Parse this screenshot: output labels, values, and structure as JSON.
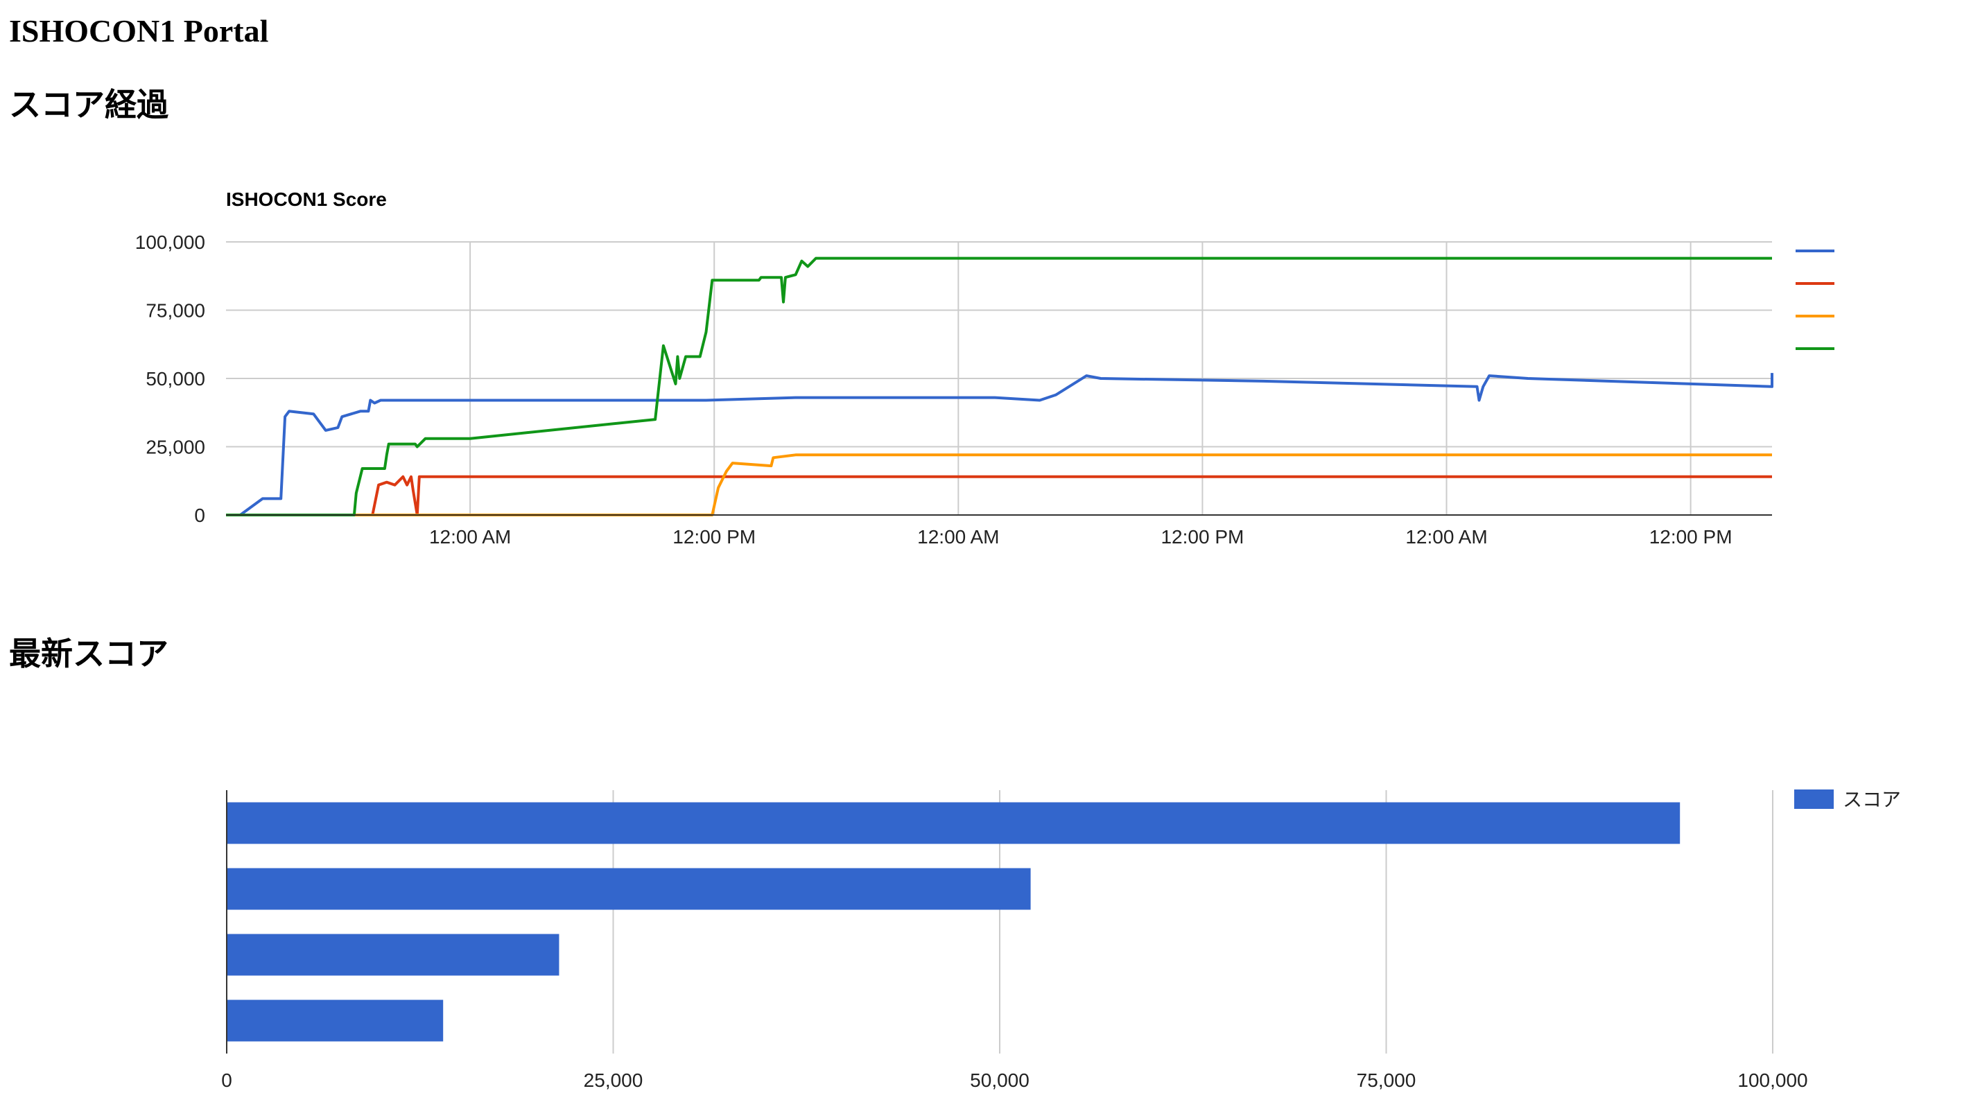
{
  "page": {
    "title": "ISHOCON1 Portal"
  },
  "sections": {
    "history": "スコア経過",
    "latest": "最新スコア"
  },
  "chart_data": [
    {
      "type": "line",
      "title": "ISHOCON1 Score",
      "xlabel": "",
      "ylabel": "",
      "x_ticks": [
        "12:00 AM",
        "12:00 PM",
        "12:00 AM",
        "12:00 PM",
        "12:00 AM",
        "12:00 PM"
      ],
      "x_tick_hours": [
        12,
        24,
        36,
        48,
        60,
        72
      ],
      "xlim_hours": [
        0,
        76
      ],
      "y_ticks": [
        "0",
        "25,000",
        "50,000",
        "75,000",
        "100,000"
      ],
      "ylim": [
        0,
        100000
      ],
      "grid": true,
      "legend": "right",
      "series": [
        {
          "name": "",
          "color": "#3366cc",
          "points": [
            [
              0,
              0
            ],
            [
              0.7,
              0
            ],
            [
              1.8,
              6000
            ],
            [
              2.7,
              6000
            ],
            [
              2.9,
              36000
            ],
            [
              3.1,
              38000
            ],
            [
              4.3,
              37000
            ],
            [
              4.9,
              31000
            ],
            [
              5.5,
              32000
            ],
            [
              5.7,
              36000
            ],
            [
              6.6,
              38000
            ],
            [
              7.0,
              38000
            ],
            [
              7.1,
              42000
            ],
            [
              7.3,
              41000
            ],
            [
              7.6,
              42000
            ],
            [
              11,
              42000
            ],
            [
              11.5,
              42000
            ],
            [
              12,
              42000
            ],
            [
              12.2,
              42000
            ],
            [
              20,
              42000
            ],
            [
              23.6,
              42000
            ],
            [
              28,
              43000
            ],
            [
              35,
              43000
            ],
            [
              37.8,
              43000
            ],
            [
              40,
              42000
            ],
            [
              40.8,
              44000
            ],
            [
              42.3,
              51000
            ],
            [
              43,
              50000
            ],
            [
              51,
              49000
            ],
            [
              61.5,
              47000
            ],
            [
              61.6,
              42000
            ],
            [
              61.8,
              47000
            ],
            [
              62.1,
              51000
            ],
            [
              64,
              50000
            ],
            [
              76,
              47000
            ],
            [
              76,
              52000
            ]
          ]
        },
        {
          "name": "",
          "color": "#dc3912",
          "points": [
            [
              6.6,
              0
            ],
            [
              7.2,
              0
            ],
            [
              7.5,
              11000
            ],
            [
              7.9,
              12000
            ],
            [
              8.3,
              11000
            ],
            [
              8.7,
              14000
            ],
            [
              8.9,
              11000
            ],
            [
              9.1,
              14000
            ],
            [
              9.2,
              9000
            ],
            [
              9.4,
              0
            ],
            [
              9.5,
              14000
            ],
            [
              76,
              14000
            ]
          ]
        },
        {
          "name": "",
          "color": "#ff9900",
          "points": [
            [
              0,
              0
            ],
            [
              23.9,
              0
            ],
            [
              24.2,
              10000
            ],
            [
              24.6,
              16000
            ],
            [
              24.9,
              19000
            ],
            [
              26.8,
              18000
            ],
            [
              26.9,
              21000
            ],
            [
              28,
              22000
            ],
            [
              76,
              22000
            ]
          ]
        },
        {
          "name": "",
          "color": "#109618",
          "points": [
            [
              0,
              0
            ],
            [
              6.3,
              0
            ],
            [
              6.4,
              8000
            ],
            [
              6.7,
              17000
            ],
            [
              7.8,
              17000
            ],
            [
              7.9,
              22000
            ],
            [
              8.0,
              26000
            ],
            [
              9.3,
              26000
            ],
            [
              9.4,
              25000
            ],
            [
              9.8,
              28000
            ],
            [
              12,
              28000
            ],
            [
              21.1,
              35000
            ],
            [
              21.5,
              62000
            ],
            [
              22.1,
              48000
            ],
            [
              22.2,
              58000
            ],
            [
              22.3,
              50000
            ],
            [
              22.6,
              58000
            ],
            [
              23.3,
              58000
            ],
            [
              23.6,
              67000
            ],
            [
              23.9,
              86000
            ],
            [
              26.2,
              86000
            ],
            [
              26.3,
              87000
            ],
            [
              27.3,
              87000
            ],
            [
              27.4,
              78000
            ],
            [
              27.5,
              87000
            ],
            [
              28.0,
              88000
            ],
            [
              28.3,
              93000
            ],
            [
              28.6,
              91000
            ],
            [
              29.0,
              94000
            ],
            [
              76,
              94000
            ]
          ]
        }
      ]
    },
    {
      "type": "bar",
      "orientation": "horizontal",
      "categories": [
        "",
        "",
        "",
        ""
      ],
      "series": [
        {
          "name": "スコア",
          "color": "#3366cc",
          "values": [
            94000,
            52000,
            21500,
            14000
          ]
        }
      ],
      "x_ticks": [
        "0",
        "25,000",
        "50,000",
        "75,000",
        "100,000"
      ],
      "xlim": [
        0,
        100000
      ],
      "grid": true,
      "legend": "top-right"
    }
  ]
}
